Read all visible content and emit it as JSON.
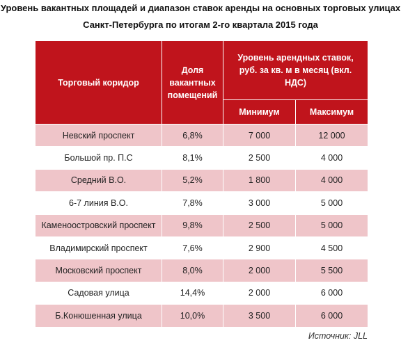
{
  "title": [
    "Уровень вакантных площадей и диапазон ставок аренды на основных торговых улицах",
    "Санкт-Петербурга по итогам 2-го квартала 2015 года"
  ],
  "table": {
    "header": {
      "corridor": "Торговый коридор",
      "vacancy": "Доля вакантных помещений",
      "rates": "Уровень арендных ставок, руб. за кв. м в месяц (вкл. НДС)",
      "min": "Минимум",
      "max": "Максимум"
    },
    "rows": [
      [
        "Невский проспект",
        "6,8%",
        "7 000",
        "12 000"
      ],
      [
        "Большой пр. П.С",
        "8,1%",
        "2 500",
        "4 000"
      ],
      [
        "Средний В.О.",
        "5,2%",
        "1 800",
        "4 000"
      ],
      [
        "6-7 линия В.О.",
        "7,8%",
        "3 000",
        "5 000"
      ],
      [
        "Каменоостровский проспект",
        "9,8%",
        "2 500",
        "5 000"
      ],
      [
        "Владимирский проспект",
        "7,6%",
        "2 900",
        "4 500"
      ],
      [
        "Московский проспект",
        "8,0%",
        "2 000",
        "5 500"
      ],
      [
        "Садовая улица",
        "14,4%",
        "2 000",
        "6 000"
      ],
      [
        "Б.Конюшенная улица",
        "10,0%",
        "3 500",
        "6 000"
      ]
    ]
  },
  "source": "Источник: JLL"
}
